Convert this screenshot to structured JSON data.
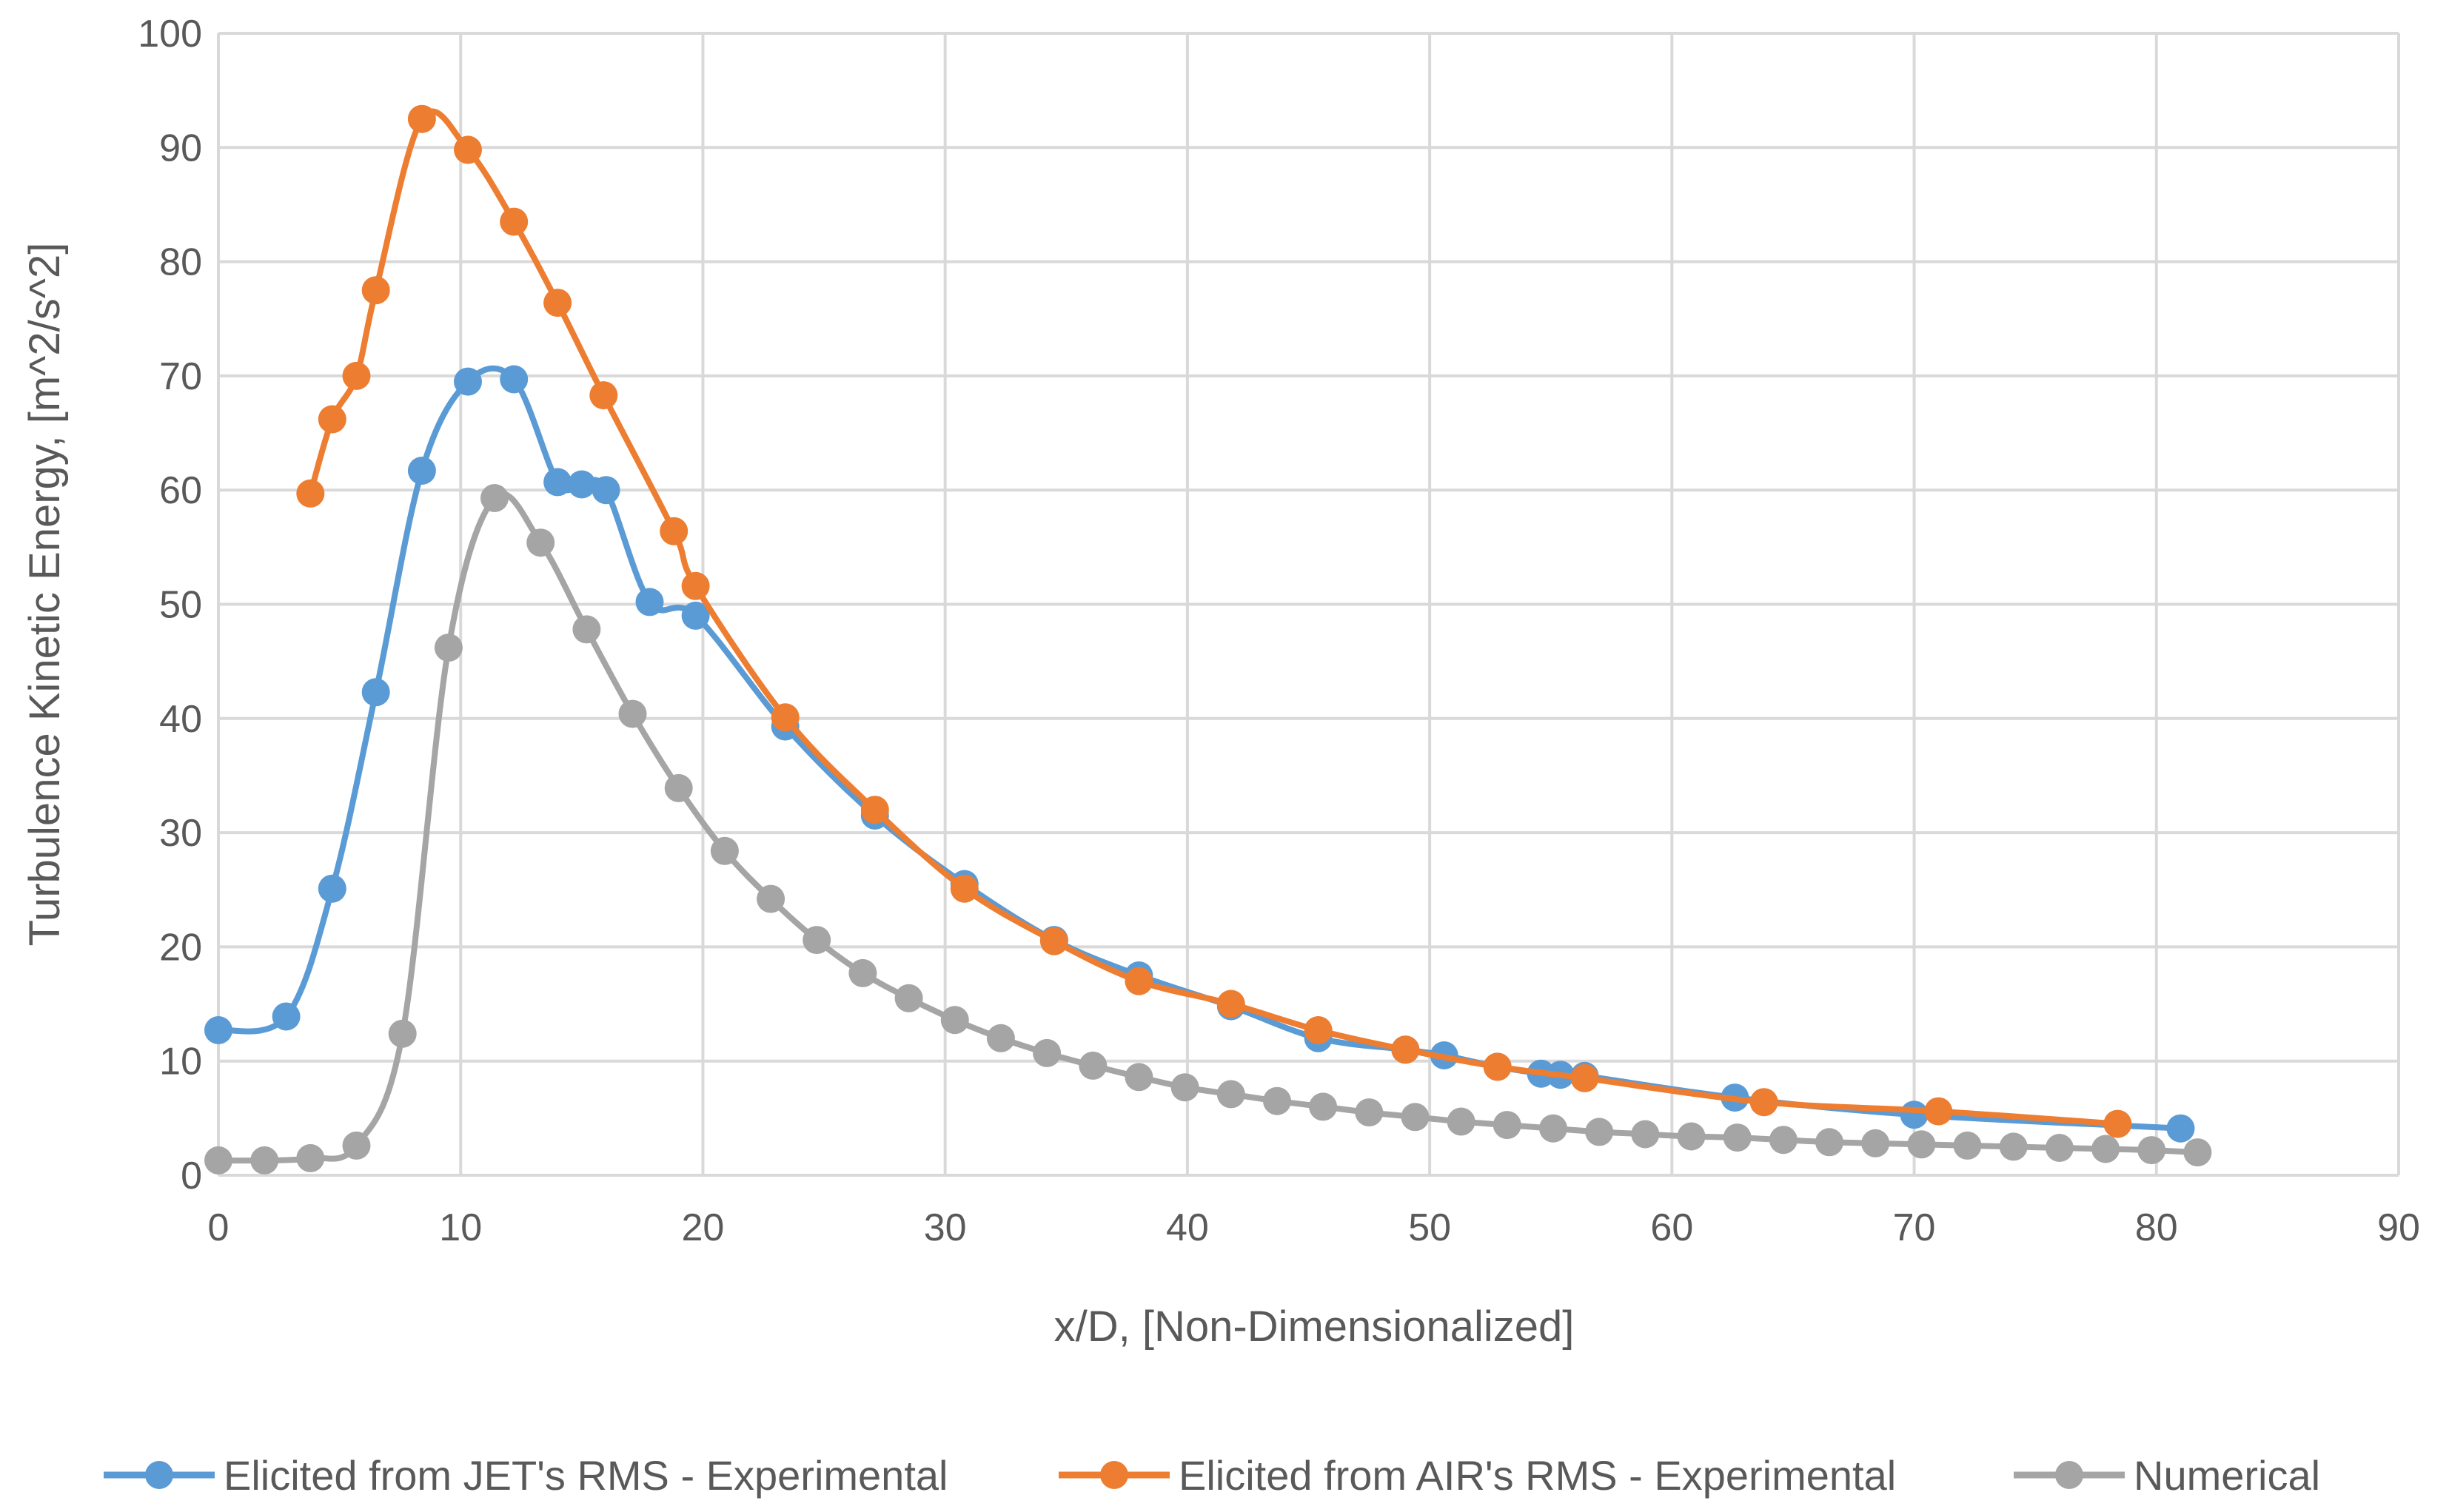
{
  "chart_data": {
    "type": "line",
    "title": "",
    "xlabel": "x/D, [Non-Dimensionalized]",
    "ylabel": "Turbulence Kinetic Energy, [m^2/s^2]",
    "xlim": [
      0,
      90
    ],
    "ylim": [
      0,
      100
    ],
    "xticks": [
      0,
      10,
      20,
      30,
      40,
      50,
      60,
      70,
      80,
      90
    ],
    "yticks": [
      0,
      10,
      20,
      30,
      40,
      50,
      60,
      70,
      80,
      90,
      100
    ],
    "grid": true,
    "legend_position": "bottom",
    "series": [
      {
        "name": "Elicited from JET's RMS - Experimental",
        "color": "#5b9bd5",
        "points": [
          [
            0,
            12.7
          ],
          [
            2.8,
            13.9
          ],
          [
            4.7,
            25.1
          ],
          [
            6.5,
            42.3
          ],
          [
            8.4,
            61.7
          ],
          [
            10.3,
            69.5
          ],
          [
            12.2,
            69.7
          ],
          [
            14.0,
            60.7
          ],
          [
            15.0,
            60.5
          ],
          [
            16.0,
            60.0
          ],
          [
            17.8,
            50.2
          ],
          [
            19.7,
            49.0
          ],
          [
            23.4,
            39.3
          ],
          [
            27.1,
            31.5
          ],
          [
            30.8,
            25.5
          ],
          [
            34.5,
            20.6
          ],
          [
            38.0,
            17.5
          ],
          [
            41.8,
            14.8
          ],
          [
            45.4,
            12.0
          ],
          [
            49.0,
            11.0
          ],
          [
            50.6,
            10.5
          ],
          [
            52.8,
            9.5
          ],
          [
            54.6,
            8.9
          ],
          [
            55.4,
            8.8
          ],
          [
            56.4,
            8.7
          ],
          [
            62.6,
            6.8
          ],
          [
            70.0,
            5.3
          ],
          [
            81.0,
            4.1
          ]
        ]
      },
      {
        "name": "Elicited from AIR's RMS - Experimental",
        "color": "#ed7d31",
        "points": [
          [
            3.8,
            59.7
          ],
          [
            4.7,
            66.2
          ],
          [
            5.7,
            70.0
          ],
          [
            6.5,
            77.5
          ],
          [
            8.4,
            92.5
          ],
          [
            10.3,
            89.8
          ],
          [
            12.2,
            83.5
          ],
          [
            14.0,
            76.4
          ],
          [
            15.9,
            68.3
          ],
          [
            18.8,
            56.4
          ],
          [
            19.7,
            51.6
          ],
          [
            23.4,
            40.1
          ],
          [
            27.1,
            32.0
          ],
          [
            30.8,
            25.1
          ],
          [
            34.5,
            20.5
          ],
          [
            38.0,
            17.0
          ],
          [
            41.8,
            15.0
          ],
          [
            45.4,
            12.7
          ],
          [
            49.0,
            11.0
          ],
          [
            52.8,
            9.5
          ],
          [
            56.4,
            8.5
          ],
          [
            63.8,
            6.4
          ],
          [
            71.0,
            5.6
          ],
          [
            78.4,
            4.5
          ]
        ]
      },
      {
        "name": "Numerical",
        "color": "#a5a5a5",
        "points": [
          [
            0,
            1.3
          ],
          [
            1.9,
            1.3
          ],
          [
            3.8,
            1.5
          ],
          [
            5.7,
            2.6
          ],
          [
            7.6,
            12.4
          ],
          [
            9.5,
            46.2
          ],
          [
            11.4,
            59.3
          ],
          [
            13.3,
            55.4
          ],
          [
            15.2,
            47.8
          ],
          [
            17.1,
            40.4
          ],
          [
            19.0,
            33.9
          ],
          [
            20.9,
            28.4
          ],
          [
            22.8,
            24.2
          ],
          [
            24.7,
            20.6
          ],
          [
            26.6,
            17.7
          ],
          [
            28.5,
            15.5
          ],
          [
            30.4,
            13.6
          ],
          [
            32.3,
            12.0
          ],
          [
            34.2,
            10.7
          ],
          [
            36.1,
            9.6
          ],
          [
            38.0,
            8.6
          ],
          [
            39.9,
            7.7
          ],
          [
            41.8,
            7.1
          ],
          [
            43.7,
            6.5
          ],
          [
            45.6,
            6.0
          ],
          [
            47.5,
            5.5
          ],
          [
            49.4,
            5.1
          ],
          [
            51.3,
            4.7
          ],
          [
            53.2,
            4.4
          ],
          [
            55.1,
            4.1
          ],
          [
            57.0,
            3.8
          ],
          [
            58.9,
            3.6
          ],
          [
            60.8,
            3.4
          ],
          [
            62.7,
            3.3
          ],
          [
            64.6,
            3.1
          ],
          [
            66.5,
            2.9
          ],
          [
            68.4,
            2.8
          ],
          [
            70.3,
            2.7
          ],
          [
            72.2,
            2.6
          ],
          [
            74.1,
            2.5
          ],
          [
            76.0,
            2.4
          ],
          [
            77.9,
            2.3
          ],
          [
            79.8,
            2.2
          ],
          [
            81.7,
            2.0
          ]
        ]
      }
    ]
  }
}
